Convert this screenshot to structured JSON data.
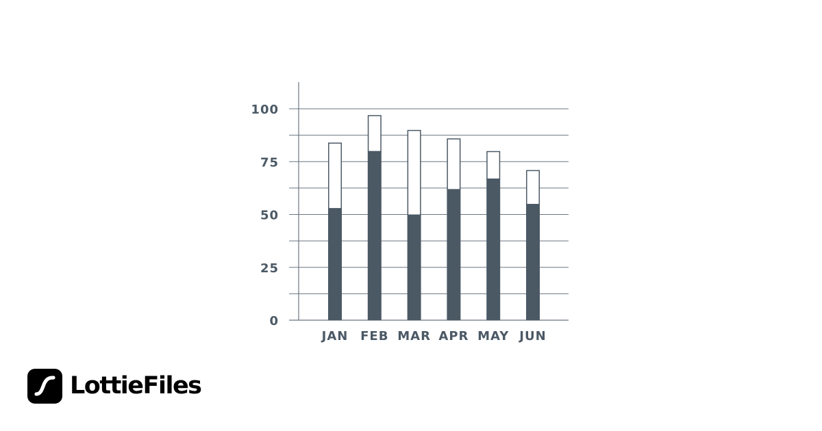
{
  "chart_data": {
    "type": "bar",
    "stacked": true,
    "categories": [
      "JAN",
      "FEB",
      "MAR",
      "APR",
      "MAY",
      "JUN"
    ],
    "series": [
      {
        "values": [
          53,
          80,
          50,
          62,
          67,
          55
        ],
        "fill": "filled"
      },
      {
        "values": [
          31,
          17,
          40,
          24,
          13,
          16
        ],
        "fill": "outline"
      }
    ],
    "y_ticks": [
      0,
      25,
      50,
      75,
      100
    ],
    "ylim": [
      0,
      112
    ],
    "grid": true,
    "gridline_step": 12.5,
    "title": "",
    "xlabel": "",
    "ylabel": ""
  },
  "colors": {
    "bar": "#4b5965",
    "grid": "#6a7580",
    "text": "#4b5965",
    "outline_fill": "#ffffff",
    "brand": "#000000"
  },
  "brand": {
    "name": "LottieFiles",
    "icon": "lottiefiles-logo-icon"
  }
}
